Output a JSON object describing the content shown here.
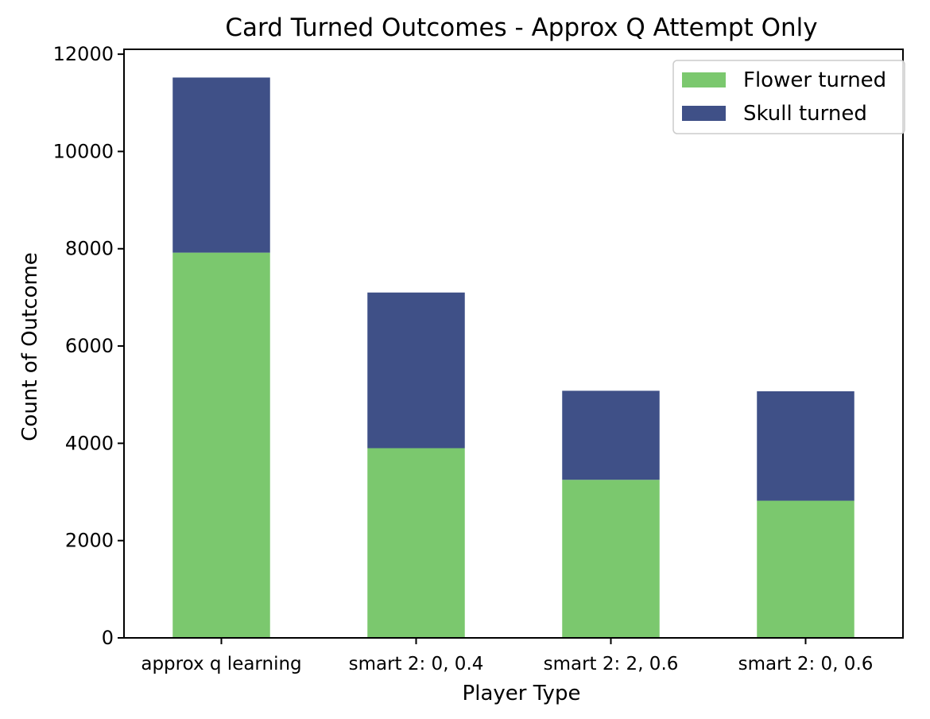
{
  "chart_data": {
    "type": "bar",
    "stacked": true,
    "title": "Card Turned Outcomes - Approx Q Attempt Only",
    "xlabel": "Player Type",
    "ylabel": "Count of Outcome",
    "categories": [
      "approx q learning",
      "smart 2: 0, 0.4",
      "smart 2: 2, 0.6",
      "smart 2: 0, 0.6"
    ],
    "series": [
      {
        "name": "Flower turned",
        "color": "#7bc86e",
        "values": [
          7920,
          3900,
          3250,
          2820
        ]
      },
      {
        "name": "Skull turned",
        "color": "#3f5087",
        "values": [
          3600,
          3200,
          1830,
          2250
        ]
      }
    ],
    "ylim": [
      0,
      12100
    ],
    "yticks": [
      0,
      2000,
      4000,
      6000,
      8000,
      10000,
      12000
    ],
    "ytick_labels": [
      "0",
      "2000",
      "4000",
      "6000",
      "8000",
      "10000",
      "12000"
    ],
    "grid": false,
    "legend_position": "top-right"
  }
}
